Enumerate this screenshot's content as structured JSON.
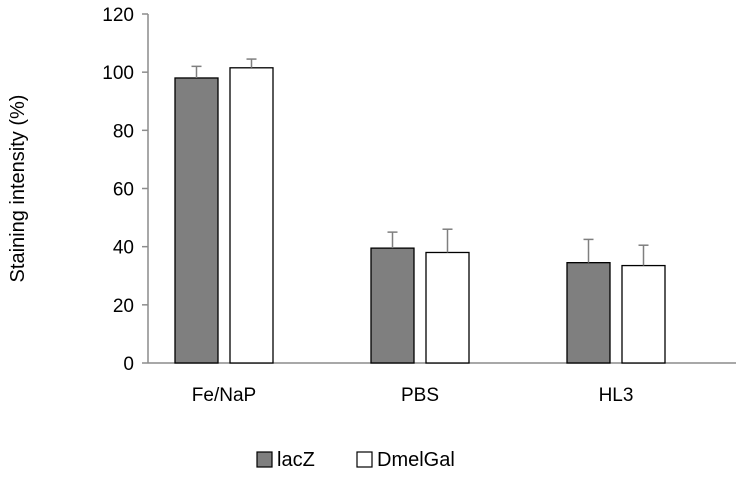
{
  "chart_data": {
    "type": "bar",
    "title": "",
    "xlabel": "",
    "ylabel": "Staining intensity (%)",
    "ylim": [
      0,
      120
    ],
    "yticks": [
      0,
      20,
      40,
      60,
      80,
      100,
      120
    ],
    "categories": [
      "Fe/NaP",
      "PBS",
      "HL3"
    ],
    "series": [
      {
        "name": "lacZ",
        "color": "#7f7f7f",
        "values": [
          98,
          39.5,
          34.5
        ],
        "errors": [
          4,
          5.5,
          8
        ]
      },
      {
        "name": "DmelGal",
        "color": "#ffffff",
        "values": [
          101.5,
          38,
          33.5
        ],
        "errors": [
          3,
          8,
          7
        ]
      }
    ],
    "grid": false,
    "legend_position": "bottom"
  }
}
